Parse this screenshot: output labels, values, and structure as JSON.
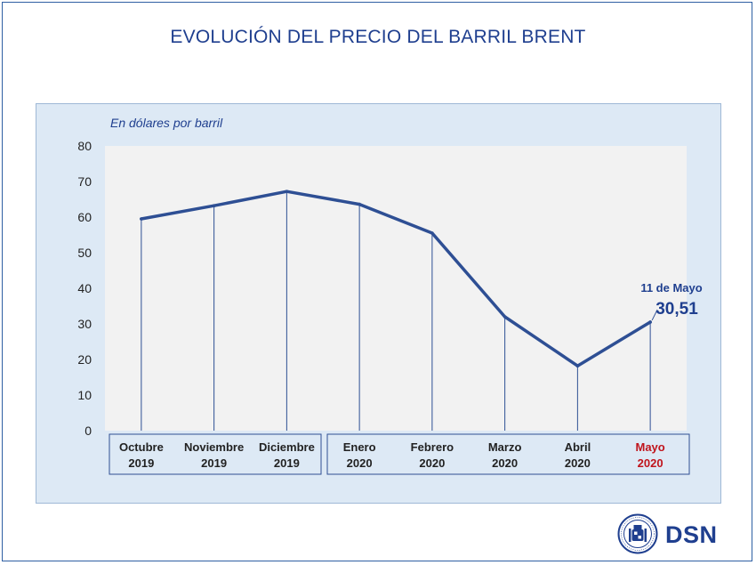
{
  "title": "EVOLUCIÓN DEL PRECIO DEL BARRIL BRENT",
  "logo_text": "DSN",
  "colors": {
    "line": "#2e4f94",
    "title": "#1f3f8f",
    "highlight_month": "#c0141c",
    "plot_bg": "#f2f2f2",
    "panel_bg": "#dde9f5"
  },
  "chart_data": {
    "type": "line",
    "ylabel": "En dólares por barril",
    "ylim": [
      0,
      80
    ],
    "yticks": [
      "0",
      "10",
      "20",
      "30",
      "40",
      "50",
      "60",
      "70",
      "80"
    ],
    "grid": false,
    "drop_lines": true,
    "categories": [
      {
        "month": "Octubre",
        "year": "2019"
      },
      {
        "month": "Noviembre",
        "year": "2019"
      },
      {
        "month": "Diciembre",
        "year": "2019"
      },
      {
        "month": "Enero",
        "year": "2020"
      },
      {
        "month": "Febrero",
        "year": "2020"
      },
      {
        "month": "Marzo",
        "year": "2020"
      },
      {
        "month": "Abril",
        "year": "2020"
      },
      {
        "month": "Mayo",
        "year": "2020"
      }
    ],
    "highlight_category": "Mayo",
    "values": [
      59.5,
      63.2,
      67.2,
      63.6,
      55.5,
      32.0,
      18.2,
      30.51
    ],
    "annotation": {
      "label": "11 de Mayo",
      "value_text": "30,51"
    }
  }
}
